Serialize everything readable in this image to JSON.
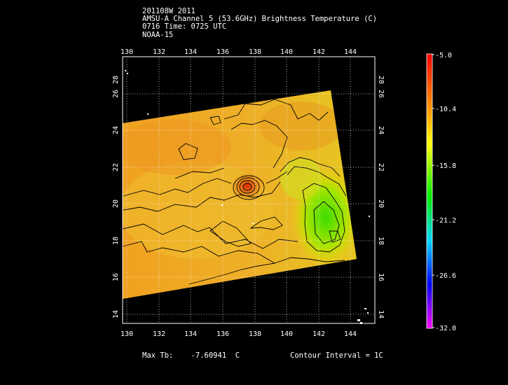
{
  "header": {
    "line1": "201108W 2011",
    "line2": "AMSU-A Channel 5 (53.6GHz) Brightness Temperature (C)",
    "line3": "0716 Time: 0725 UTC",
    "line4": "NOAA-15"
  },
  "map": {
    "lon_ticks": [
      "130",
      "132",
      "134",
      "136",
      "138",
      "140",
      "142",
      "144"
    ],
    "lat_ticks": [
      "14",
      "16",
      "18",
      "20",
      "22",
      "24",
      "26",
      "28"
    ],
    "lon_range": [
      129.8,
      145.6
    ],
    "lat_range": [
      13.3,
      29.0
    ],
    "max_tb_center": {
      "lon": 137.6,
      "lat": 21.7
    }
  },
  "colorbar": {
    "labels": [
      "-5.0",
      "-10.4",
      "-15.8",
      "-21.2",
      "-26.6",
      "-32.0"
    ],
    "colors": [
      "#ff0000",
      "#ff8800",
      "#ffff00",
      "#00ee00",
      "#00d8ff",
      "#0000ff",
      "#ff00ff"
    ]
  },
  "footer": {
    "max_tb_label": "Max Tb:",
    "max_tb_value": "-7.60941",
    "max_tb_unit": "C",
    "contour_label": "Contour Interval = 1C"
  }
}
